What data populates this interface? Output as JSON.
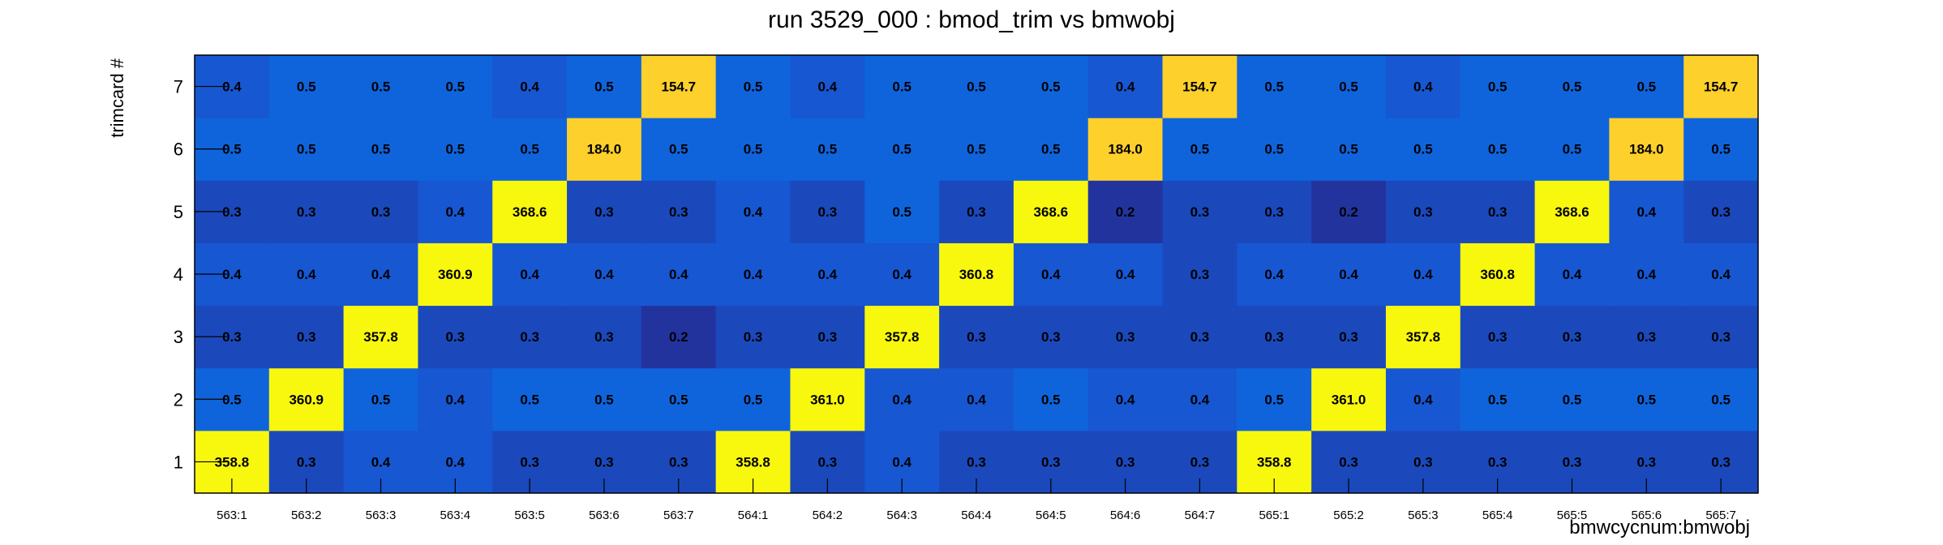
{
  "chart_data": {
    "type": "heatmap",
    "title": "run 3529_000 : bmod_trim vs bmwobj",
    "xlabel": "bmwcycnum:bmwobj",
    "ylabel": "trimcard #",
    "x_categories": [
      "563:1",
      "563:2",
      "563:3",
      "563:4",
      "563:5",
      "563:6",
      "563:7",
      "564:1",
      "564:2",
      "564:3",
      "564:4",
      "564:5",
      "564:6",
      "564:7",
      "565:1",
      "565:2",
      "565:3",
      "565:4",
      "565:5",
      "565:6",
      "565:7"
    ],
    "y_categories": [
      "1",
      "2",
      "3",
      "4",
      "5",
      "6",
      "7"
    ],
    "values": [
      [
        358.8,
        0.3,
        0.4,
        0.4,
        0.3,
        0.3,
        0.3,
        358.8,
        0.3,
        0.4,
        0.3,
        0.3,
        0.3,
        0.3,
        358.8,
        0.3,
        0.3,
        0.3,
        0.3,
        0.3,
        0.3
      ],
      [
        0.5,
        360.9,
        0.5,
        0.4,
        0.5,
        0.5,
        0.5,
        0.5,
        361.0,
        0.4,
        0.4,
        0.5,
        0.4,
        0.4,
        0.5,
        361.0,
        0.4,
        0.5,
        0.5,
        0.5,
        0.5
      ],
      [
        0.3,
        0.3,
        357.8,
        0.3,
        0.3,
        0.3,
        0.2,
        0.3,
        0.3,
        357.8,
        0.3,
        0.3,
        0.3,
        0.3,
        0.3,
        0.3,
        357.8,
        0.3,
        0.3,
        0.3,
        0.3
      ],
      [
        0.4,
        0.4,
        0.4,
        360.9,
        0.4,
        0.4,
        0.4,
        0.4,
        0.4,
        0.4,
        360.8,
        0.4,
        0.4,
        0.3,
        0.4,
        0.4,
        0.4,
        360.8,
        0.4,
        0.4,
        0.4
      ],
      [
        0.3,
        0.3,
        0.3,
        0.4,
        368.6,
        0.3,
        0.3,
        0.4,
        0.3,
        0.5,
        0.3,
        368.6,
        0.2,
        0.3,
        0.3,
        0.2,
        0.3,
        0.3,
        368.6,
        0.4,
        0.3
      ],
      [
        0.5,
        0.5,
        0.5,
        0.5,
        0.5,
        184.0,
        0.5,
        0.5,
        0.5,
        0.5,
        0.5,
        0.5,
        184.0,
        0.5,
        0.5,
        0.5,
        0.5,
        0.5,
        0.5,
        184.0,
        0.5
      ],
      [
        0.4,
        0.5,
        0.5,
        0.5,
        0.4,
        0.5,
        154.7,
        0.5,
        0.4,
        0.5,
        0.5,
        0.5,
        0.4,
        154.7,
        0.5,
        0.5,
        0.4,
        0.5,
        0.5,
        0.5,
        154.7
      ]
    ],
    "colors": {
      "high": "#f8f70e",
      "mid_high": "#fdd02c",
      "low": "#0f64dc",
      "low_mid": "#1851c8",
      "lowest": "#23339e"
    },
    "grid": false
  }
}
